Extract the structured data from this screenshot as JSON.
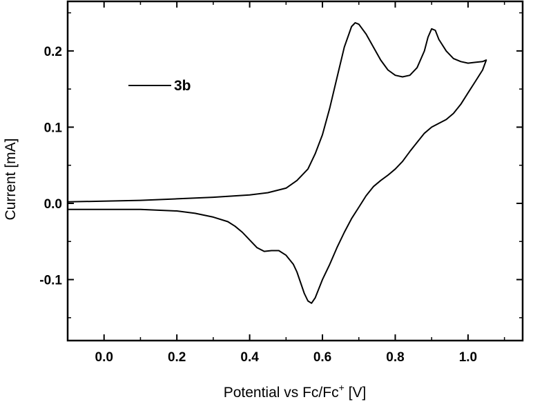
{
  "chart_data": {
    "type": "line",
    "xlabel_main": "Potential vs Fc/Fc",
    "xlabel_sup": "+",
    "xlabel_unit": " [V]",
    "ylabel": "Current [mA]",
    "xlim": [
      -0.1,
      1.15
    ],
    "ylim": [
      -0.18,
      0.265
    ],
    "x_ticks": [
      0.0,
      0.2,
      0.4,
      0.6,
      0.8,
      1.0
    ],
    "x_tick_labels": [
      "0.0",
      "0.2",
      "0.4",
      "0.6",
      "0.8",
      "1.0"
    ],
    "y_ticks": [
      -0.1,
      0.0,
      0.1,
      0.2
    ],
    "y_tick_labels": [
      "-0.1",
      "0.0",
      "0.1",
      "0.2"
    ],
    "legend": "top-left",
    "grid": false,
    "series": [
      {
        "name": "3b",
        "color": "#000000",
        "x": [
          -0.1,
          0.0,
          0.1,
          0.2,
          0.3,
          0.4,
          0.45,
          0.5,
          0.53,
          0.56,
          0.58,
          0.6,
          0.62,
          0.64,
          0.66,
          0.68,
          0.69,
          0.7,
          0.72,
          0.74,
          0.76,
          0.78,
          0.8,
          0.82,
          0.84,
          0.86,
          0.88,
          0.89,
          0.9,
          0.91,
          0.92,
          0.94,
          0.96,
          0.98,
          1.0,
          1.02,
          1.04,
          1.05,
          1.04,
          1.02,
          1.0,
          0.98,
          0.96,
          0.94,
          0.92,
          0.9,
          0.88,
          0.86,
          0.84,
          0.82,
          0.8,
          0.78,
          0.76,
          0.74,
          0.72,
          0.7,
          0.68,
          0.66,
          0.64,
          0.62,
          0.6,
          0.59,
          0.58,
          0.57,
          0.56,
          0.55,
          0.54,
          0.53,
          0.52,
          0.5,
          0.48,
          0.46,
          0.44,
          0.42,
          0.4,
          0.38,
          0.36,
          0.34,
          0.3,
          0.25,
          0.2,
          0.1,
          0.0,
          -0.1
        ],
        "y": [
          0.002,
          0.003,
          0.004,
          0.006,
          0.008,
          0.011,
          0.014,
          0.02,
          0.03,
          0.045,
          0.065,
          0.09,
          0.125,
          0.165,
          0.205,
          0.232,
          0.237,
          0.235,
          0.222,
          0.205,
          0.188,
          0.175,
          0.168,
          0.166,
          0.168,
          0.178,
          0.2,
          0.218,
          0.229,
          0.227,
          0.215,
          0.2,
          0.19,
          0.186,
          0.184,
          0.185,
          0.186,
          0.188,
          0.175,
          0.16,
          0.145,
          0.13,
          0.118,
          0.11,
          0.105,
          0.1,
          0.092,
          0.08,
          0.068,
          0.055,
          0.045,
          0.037,
          0.03,
          0.022,
          0.01,
          -0.005,
          -0.02,
          -0.038,
          -0.058,
          -0.08,
          -0.1,
          -0.112,
          -0.124,
          -0.131,
          -0.128,
          -0.118,
          -0.104,
          -0.09,
          -0.08,
          -0.068,
          -0.062,
          -0.062,
          -0.063,
          -0.058,
          -0.048,
          -0.038,
          -0.03,
          -0.024,
          -0.018,
          -0.013,
          -0.01,
          -0.008,
          -0.008,
          -0.008
        ]
      }
    ]
  }
}
